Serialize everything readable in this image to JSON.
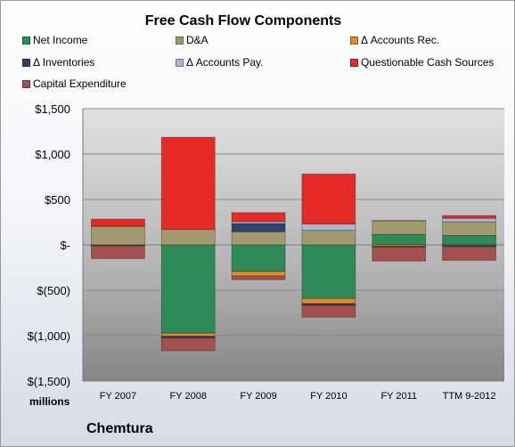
{
  "title": "Free Cash Flow Components",
  "units_label": "millions",
  "company": "Chemtura",
  "chart_data": {
    "type": "bar",
    "stacked": true,
    "title": "Free Cash Flow Components",
    "xlabel": "",
    "ylabel": "millions",
    "ylim": [
      -1500,
      1500
    ],
    "y_ticks": [
      1500,
      1000,
      500,
      0,
      -500,
      -1000,
      -1500
    ],
    "y_tick_labels": [
      "$1,500",
      "$1,000",
      "$500",
      "$-",
      "$(500)",
      "$(1,000)",
      "$(1,500)"
    ],
    "grid": true,
    "legend_position": "top",
    "categories": [
      "FY 2007",
      "FY 2008",
      "FY 2009",
      "FY 2010",
      "FY 2011",
      "TTM 9-2012"
    ],
    "series": [
      {
        "name": "Net Income",
        "color": "#2e8b57",
        "values": [
          -2,
          -973,
          -293,
          -591,
          115,
          105
        ]
      },
      {
        "name": "D&A",
        "color": "#a29a6e",
        "values": [
          205,
          170,
          145,
          160,
          150,
          148
        ]
      },
      {
        "name": "Δ Accounts Rec.",
        "color": "#e58a2a",
        "values": [
          3,
          -32,
          -50,
          -55,
          -15,
          -8
        ]
      },
      {
        "name": "Δ Inventories",
        "color": "#2e4470",
        "values": [
          -5,
          -20,
          90,
          -20,
          -8,
          -12
        ]
      },
      {
        "name": "Δ Accounts Pay.",
        "color": "#a8b8d0",
        "values": [
          -4,
          0,
          20,
          70,
          5,
          40
        ]
      },
      {
        "name": "Questionable Cash Sources",
        "color": "#e62a28",
        "values": [
          75,
          1015,
          100,
          550,
          0,
          30
        ]
      },
      {
        "name": "Capital Expenditure",
        "color": "#a44f4f",
        "values": [
          -140,
          -140,
          -40,
          -130,
          -155,
          -150
        ]
      }
    ]
  }
}
